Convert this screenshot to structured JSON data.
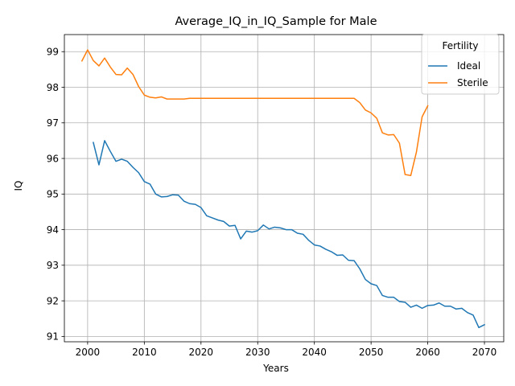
{
  "chart_data": {
    "type": "line",
    "title": "Average_IQ_in_IQ_Sample for Male",
    "xlabel": "Years",
    "ylabel": "IQ",
    "xlim": [
      1995.9,
      2073.4
    ],
    "ylim": [
      90.85,
      99.48
    ],
    "x_ticks": [
      2000,
      2010,
      2020,
      2030,
      2040,
      2050,
      2060,
      2070
    ],
    "y_ticks": [
      91,
      92,
      93,
      94,
      95,
      96,
      97,
      98,
      99
    ],
    "grid": true,
    "legend": {
      "title": "Fertility",
      "placement": "top-right"
    },
    "series": [
      {
        "name": "Ideal",
        "color": "#1f77b4",
        "x": [
          2001,
          2002,
          2003,
          2004,
          2005,
          2006,
          2007,
          2008,
          2009,
          2010,
          2011,
          2012,
          2013,
          2014,
          2015,
          2016,
          2017,
          2018,
          2019,
          2020,
          2021,
          2022,
          2023,
          2024,
          2025,
          2026,
          2027,
          2028,
          2029,
          2030,
          2031,
          2032,
          2033,
          2034,
          2035,
          2036,
          2037,
          2038,
          2039,
          2040,
          2041,
          2042,
          2043,
          2044,
          2045,
          2046,
          2047,
          2048,
          2049,
          2050,
          2051,
          2052,
          2053,
          2054,
          2055,
          2056,
          2057,
          2058,
          2059,
          2060,
          2061,
          2062,
          2063,
          2064,
          2065,
          2066,
          2067,
          2068,
          2069,
          2070
        ],
        "values": [
          96.45,
          95.82,
          96.5,
          96.2,
          95.92,
          95.98,
          95.92,
          95.75,
          95.6,
          95.35,
          95.28,
          95.0,
          94.92,
          94.93,
          94.98,
          94.97,
          94.8,
          94.73,
          94.71,
          94.62,
          94.39,
          94.33,
          94.27,
          94.23,
          94.1,
          94.12,
          93.74,
          93.96,
          93.93,
          93.97,
          94.13,
          94.02,
          94.07,
          94.05,
          94.0,
          94.0,
          93.9,
          93.87,
          93.7,
          93.57,
          93.54,
          93.45,
          93.38,
          93.28,
          93.29,
          93.14,
          93.13,
          92.9,
          92.6,
          92.48,
          92.43,
          92.15,
          92.1,
          92.1,
          91.98,
          91.96,
          91.82,
          91.88,
          91.79,
          91.87,
          91.88,
          91.94,
          91.85,
          91.85,
          91.77,
          91.79,
          91.67,
          91.6,
          91.25,
          91.33
        ]
      },
      {
        "name": "Sterile",
        "color": "#ff7f0e",
        "x": [
          1999,
          2000,
          2001,
          2002,
          2003,
          2004,
          2005,
          2006,
          2007,
          2008,
          2009,
          2010,
          2011,
          2012,
          2013,
          2014,
          2015,
          2016,
          2017,
          2018,
          2019,
          2020,
          2021,
          2022,
          2023,
          2024,
          2025,
          2026,
          2027,
          2028,
          2029,
          2030,
          2031,
          2032,
          2033,
          2034,
          2035,
          2036,
          2037,
          2038,
          2039,
          2040,
          2041,
          2042,
          2043,
          2044,
          2045,
          2046,
          2047,
          2048,
          2049,
          2050,
          2051,
          2052,
          2053,
          2054,
          2055,
          2056,
          2057,
          2058,
          2059,
          2060
        ],
        "values": [
          98.74,
          99.05,
          98.75,
          98.6,
          98.82,
          98.57,
          98.36,
          98.35,
          98.54,
          98.36,
          98.02,
          97.78,
          97.72,
          97.7,
          97.73,
          97.67,
          97.67,
          97.67,
          97.67,
          97.69,
          97.69,
          97.69,
          97.69,
          97.69,
          97.69,
          97.69,
          97.69,
          97.69,
          97.69,
          97.69,
          97.69,
          97.69,
          97.69,
          97.69,
          97.69,
          97.69,
          97.69,
          97.69,
          97.69,
          97.69,
          97.69,
          97.69,
          97.69,
          97.69,
          97.69,
          97.69,
          97.69,
          97.69,
          97.69,
          97.57,
          97.36,
          97.28,
          97.13,
          96.72,
          96.66,
          96.67,
          96.43,
          95.55,
          95.52,
          96.18,
          97.17,
          97.48
        ]
      }
    ]
  }
}
